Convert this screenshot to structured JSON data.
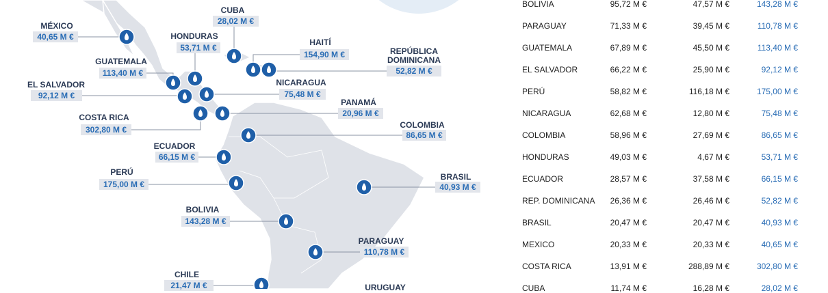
{
  "map": {
    "labels": [
      {
        "name": "MÉXICO",
        "value": "40,65 M €"
      },
      {
        "name": "CUBA",
        "value": "28,02 M €"
      },
      {
        "name": "HONDURAS",
        "value": "53,71 M €"
      },
      {
        "name": "HAITÍ",
        "value": "154,90 M €"
      },
      {
        "name": "REPÚBLICA DOMINICANA",
        "value": "52,82 M €"
      },
      {
        "name": "GUATEMALA",
        "value": "113,40 M €"
      },
      {
        "name": "EL SALVADOR",
        "value": "92,12 M €"
      },
      {
        "name": "NICARAGUA",
        "value": "75,48 M €"
      },
      {
        "name": "PANAMÁ",
        "value": "20,96 M €"
      },
      {
        "name": "COSTA RICA",
        "value": "302,80 M €"
      },
      {
        "name": "COLOMBIA",
        "value": "86,65 M €"
      },
      {
        "name": "ECUADOR",
        "value": "66,15 M €"
      },
      {
        "name": "PERÚ",
        "value": "175,00 M €"
      },
      {
        "name": "BRASIL",
        "value": "40,93 M €"
      },
      {
        "name": "BOLIVIA",
        "value": "143,28 M €"
      },
      {
        "name": "PARAGUAY",
        "value": "110,78 M €"
      },
      {
        "name": "CHILE",
        "value": "21,47 M €"
      },
      {
        "name": "URUGUAY"
      }
    ]
  },
  "table": {
    "rows": [
      [
        "BOLIVIA",
        "95,72 M €",
        "47,57 M €",
        "143,28 M €"
      ],
      [
        "PARAGUAY",
        "71,33 M €",
        "39,45 M €",
        "110,78 M €"
      ],
      [
        "GUATEMALA",
        "67,89 M €",
        "45,50 M €",
        "113,40 M €"
      ],
      [
        "EL SALVADOR",
        "66,22 M €",
        "25,90 M €",
        "92,12 M €"
      ],
      [
        "PERÚ",
        "58,82 M €",
        "116,18 M €",
        "175,00 M €"
      ],
      [
        "NICARAGUA",
        "62,68 M €",
        "12,80 M €",
        "75,48 M €"
      ],
      [
        "COLOMBIA",
        "58,96 M €",
        "27,69 M €",
        "86,65 M €"
      ],
      [
        "HONDURAS",
        "49,03 M €",
        "4,67 M €",
        "53,71 M €"
      ],
      [
        "ECUADOR",
        "28,57 M €",
        "37,58 M €",
        "66,15 M €"
      ],
      [
        "REP. DOMINICANA",
        "26,36 M €",
        "26,46 M €",
        "52,82 M €"
      ],
      [
        "BRASIL",
        "20,47 M €",
        "20,47 M €",
        "40,93 M €"
      ],
      [
        "MEXICO",
        "20,33 M €",
        "20,33 M €",
        "40,65 M €"
      ],
      [
        "COSTA RICA",
        "13,91 M €",
        "288,89 M €",
        "302,80 M €"
      ],
      [
        "CUBA",
        "11,74 M €",
        "16,28 M €",
        "28,02 M €"
      ]
    ]
  }
}
